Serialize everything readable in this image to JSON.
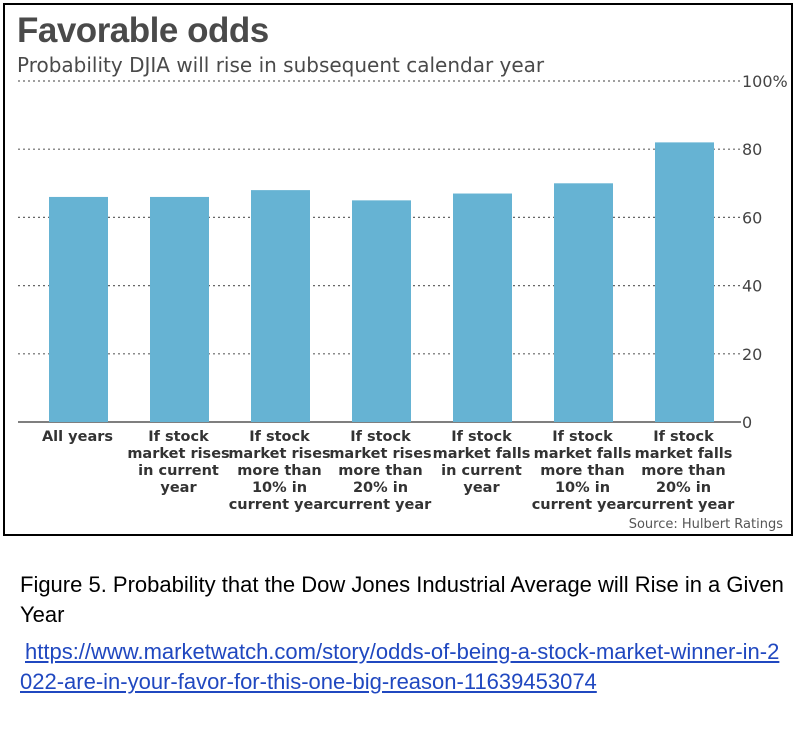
{
  "chart_data": {
    "type": "bar",
    "title": "Favorable odds",
    "subtitle": "Probability DJIA will rise in subsequent calendar year",
    "categories": [
      [
        "All years"
      ],
      [
        "If stock",
        "market rises",
        "in current",
        "year"
      ],
      [
        "If stock",
        "market rises",
        "more than",
        "10% in",
        "current year"
      ],
      [
        "If stock",
        "market rises",
        "more than",
        "20% in",
        "current year"
      ],
      [
        "If stock",
        "market falls",
        "in current",
        "year"
      ],
      [
        "If stock",
        "market falls",
        "more than",
        "10% in",
        "current year"
      ],
      [
        "If stock",
        "market falls",
        "more than",
        "20% in",
        "current year"
      ]
    ],
    "values": [
      66,
      66,
      68,
      65,
      67,
      70,
      82
    ],
    "ylim": [
      0,
      100
    ],
    "yticks": [
      "0",
      "20",
      "40",
      "60",
      "80",
      "100%"
    ],
    "ytick_values": [
      0,
      20,
      40,
      60,
      80,
      100
    ],
    "grid": true,
    "bar_color": "#66b3d3",
    "source": "Source: Hulbert Ratings"
  },
  "caption": {
    "text": "Figure 5. Probability that the Dow Jones Industrial Average will Rise in a Given Year",
    "link": "https://www.marketwatch.com/story/odds-of-being-a-stock-market-winner-in-2022-are-in-your-favor-for-this-one-big-reason-11639453074"
  }
}
